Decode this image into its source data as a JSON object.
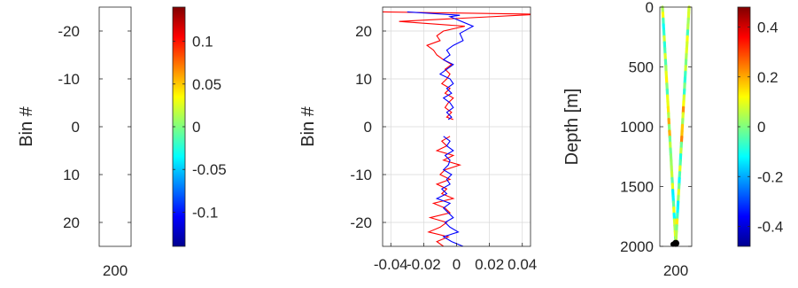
{
  "colors": {
    "axis": "#262626",
    "grid": "#d9d9d9",
    "series_red": "#ff0000",
    "series_blue": "#0000ff",
    "marker": "#000000"
  },
  "chart_data": [
    {
      "type": "heatmap",
      "ylabel": "Bin #",
      "ylim": [
        -25,
        25
      ],
      "ydir": "reverse",
      "xticks": [
        200
      ],
      "yticks": [
        -20,
        -10,
        0,
        10,
        20
      ],
      "ytick_labels": [
        "-20",
        "-10",
        "0",
        "10",
        "20"
      ],
      "xtick_labels": [
        "200"
      ],
      "colorbar": {
        "colormap": "jet",
        "range": [
          -0.14,
          0.14
        ],
        "ticks": [
          0.1,
          0.05,
          0,
          -0.05,
          -0.1
        ],
        "tick_labels": [
          "0.1",
          "0.05",
          "0",
          "-0.05",
          "-0.1"
        ]
      }
    },
    {
      "type": "line",
      "ylabel": "Bin #",
      "xlim": [
        -0.045,
        0.045
      ],
      "ylim": [
        -25,
        25
      ],
      "grid": true,
      "xticks": [
        -0.04,
        -0.02,
        0,
        0.02,
        0.04
      ],
      "xtick_labels": [
        "-0.04",
        "-0.02",
        "0",
        "0.02",
        "0.04"
      ],
      "yticks": [
        20,
        10,
        0,
        -10,
        -20
      ],
      "ytick_labels": [
        "20",
        "10",
        "0",
        "-10",
        "-20"
      ],
      "series": [
        {
          "color": "#ff0000",
          "points": [
            [
              -0.048,
              24
            ],
            [
              0.05,
              23.5
            ],
            [
              -0.035,
              22
            ],
            [
              0.005,
              21
            ],
            [
              -0.008,
              20
            ],
            [
              -0.012,
              19
            ],
            [
              -0.01,
              18
            ],
            [
              -0.018,
              17
            ],
            [
              -0.014,
              16
            ],
            [
              -0.012,
              15
            ],
            [
              -0.008,
              14
            ],
            [
              -0.003,
              13
            ],
            [
              -0.007,
              12
            ],
            [
              -0.004,
              11
            ],
            [
              -0.006,
              10
            ],
            [
              -0.009,
              9
            ],
            [
              -0.004,
              8
            ],
            [
              -0.007,
              7
            ],
            [
              -0.002,
              6
            ],
            [
              -0.005,
              5
            ],
            [
              -0.007,
              4
            ],
            [
              -0.003,
              3
            ],
            [
              -0.006,
              2
            ],
            [
              -0.002,
              1.5
            ],
            null,
            [
              -0.004,
              -2
            ],
            [
              -0.009,
              -3
            ],
            [
              -0.006,
              -4
            ],
            [
              -0.012,
              -5
            ],
            [
              -0.002,
              -6
            ],
            [
              -0.008,
              -7
            ],
            [
              0.002,
              -8
            ],
            [
              -0.007,
              -9
            ],
            [
              -0.01,
              -10
            ],
            [
              -0.004,
              -11
            ],
            [
              -0.012,
              -12
            ],
            [
              -0.006,
              -13
            ],
            [
              -0.009,
              -14
            ],
            [
              -0.002,
              -15
            ],
            [
              -0.014,
              -16
            ],
            [
              -0.007,
              -17
            ],
            [
              -0.004,
              -18
            ],
            [
              -0.016,
              -19
            ],
            [
              -0.006,
              -20
            ],
            [
              -0.01,
              -21
            ],
            [
              -0.017,
              -22
            ],
            [
              -0.005,
              -23
            ],
            [
              -0.012,
              -24
            ],
            [
              -0.008,
              -25
            ]
          ]
        },
        {
          "color": "#0000ff",
          "points": [
            [
              -0.03,
              24
            ],
            [
              0.002,
              23.3
            ],
            [
              -0.004,
              23
            ],
            [
              0.01,
              21
            ],
            [
              0.002,
              19.5
            ],
            [
              0.004,
              18
            ],
            [
              -0.002,
              17
            ],
            [
              -0.006,
              16
            ],
            [
              -0.004,
              15
            ],
            [
              -0.008,
              14
            ],
            [
              -0.002,
              13
            ],
            [
              -0.006,
              12
            ],
            [
              -0.01,
              11
            ],
            [
              -0.004,
              10
            ],
            [
              -0.002,
              9
            ],
            [
              -0.006,
              8
            ],
            [
              -0.003,
              7
            ],
            [
              -0.008,
              6
            ],
            [
              -0.004,
              5
            ],
            [
              -0.002,
              4
            ],
            [
              -0.006,
              3
            ],
            [
              -0.003,
              2
            ],
            [
              -0.005,
              1.5
            ],
            null,
            [
              -0.008,
              -2
            ],
            [
              -0.004,
              -3
            ],
            [
              -0.006,
              -4
            ],
            [
              -0.002,
              -5
            ],
            [
              -0.007,
              -6
            ],
            [
              -0.004,
              -7
            ],
            [
              -0.005,
              -8
            ],
            [
              -0.008,
              -9
            ],
            [
              -0.003,
              -10
            ],
            [
              -0.006,
              -11
            ],
            [
              -0.004,
              -12
            ],
            [
              -0.009,
              -13
            ],
            [
              -0.006,
              -14
            ],
            [
              -0.012,
              -15
            ],
            [
              -0.004,
              -16
            ],
            [
              -0.008,
              -17
            ],
            [
              -0.005,
              -18
            ],
            [
              -0.002,
              -19
            ],
            [
              -0.007,
              -20
            ],
            [
              -0.004,
              -21
            ],
            [
              0.001,
              -22
            ],
            [
              -0.008,
              -23
            ],
            [
              -0.003,
              -24
            ],
            [
              0.004,
              -25
            ]
          ]
        }
      ]
    },
    {
      "type": "scatter",
      "ylabel": "Depth [m]",
      "ylim": [
        0,
        2000
      ],
      "ydir": "reverse",
      "xticks": [
        200
      ],
      "xtick_labels": [
        "200"
      ],
      "yticks": [
        0,
        500,
        1000,
        1500,
        2000
      ],
      "ytick_labels": [
        "0",
        "500",
        "1000",
        "1500",
        "2000"
      ],
      "marker_depth": 1975,
      "colorbar": {
        "colormap": "jet",
        "range": [
          -0.48,
          0.48
        ],
        "ticks": [
          0.4,
          0.2,
          0,
          -0.2,
          -0.4
        ],
        "tick_labels": [
          "0.4",
          "0.2",
          "0",
          "-0.2",
          "-0.4"
        ]
      }
    }
  ]
}
